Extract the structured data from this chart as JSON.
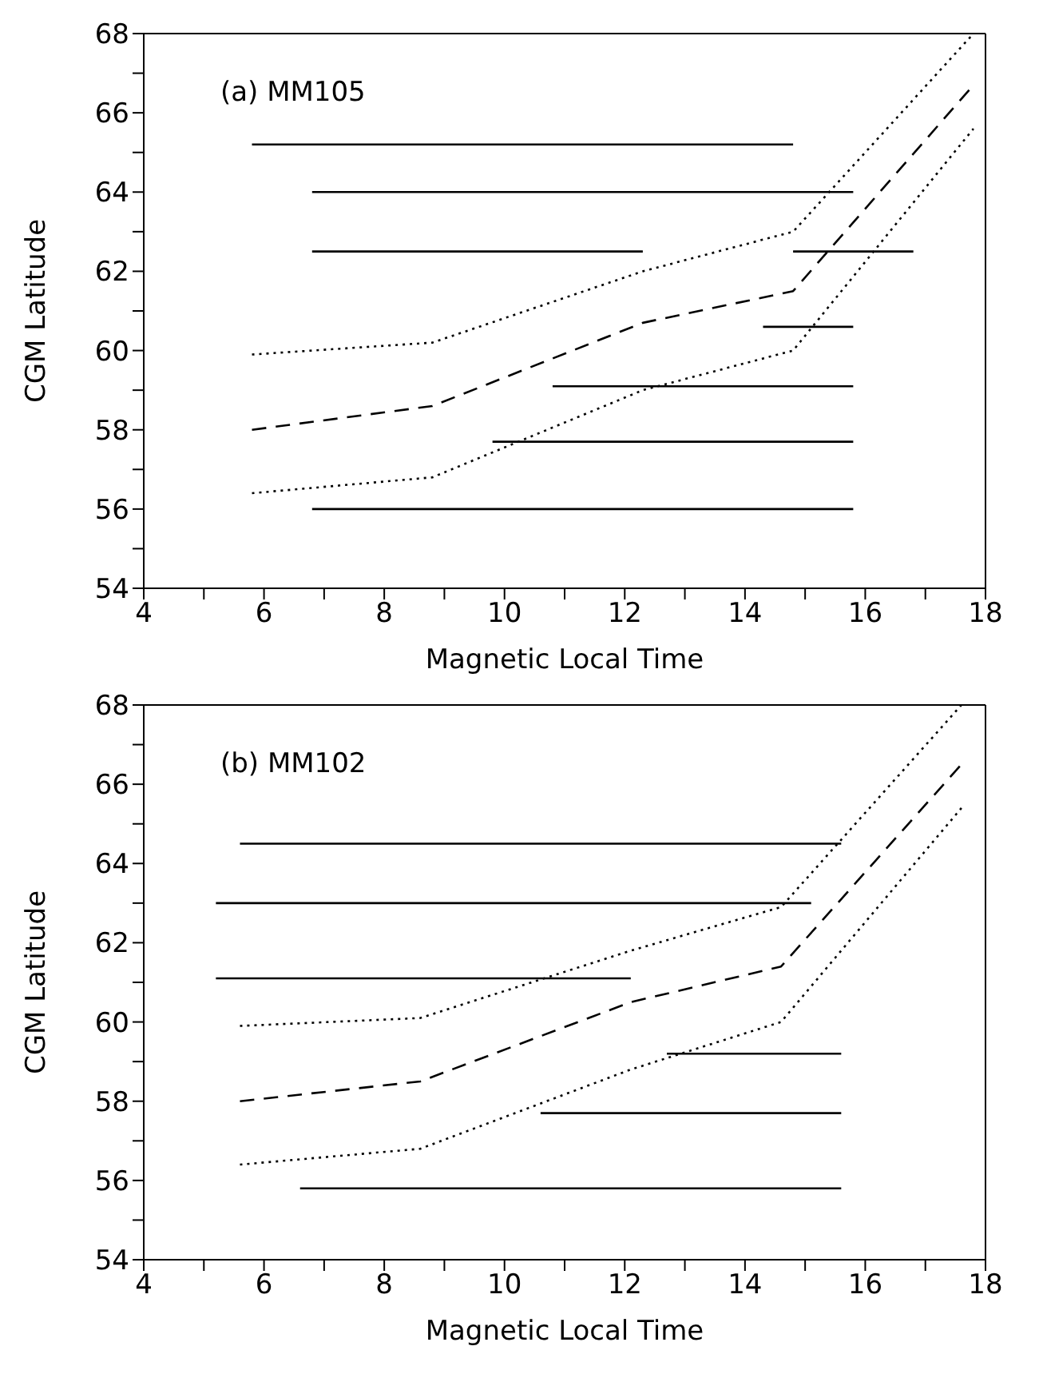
{
  "chart_data": [
    {
      "type": "line",
      "annotations": [
        "(a) MM105"
      ],
      "xlabel": "Magnetic Local Time",
      "ylabel": "CGM Latitude",
      "xlim": [
        4,
        18
      ],
      "ylim": [
        54,
        68
      ],
      "xticks": [
        4,
        {
          "value": 5,
          "label": null
        },
        6,
        {
          "value": 7,
          "label": null
        },
        8,
        {
          "value": 9,
          "label": null
        },
        10,
        {
          "value": 11,
          "label": null
        },
        12,
        {
          "value": 13,
          "label": null
        },
        14,
        {
          "value": 15,
          "label": null
        },
        16,
        {
          "value": 17,
          "label": null
        },
        18
      ],
      "yticks": [
        54,
        {
          "value": 55,
          "label": null
        },
        56,
        {
          "value": 57,
          "label": null
        },
        58,
        {
          "value": 59,
          "label": null
        },
        60,
        {
          "value": 61,
          "label": null
        },
        62,
        {
          "value": 63,
          "label": null
        },
        64,
        {
          "value": 65,
          "label": null
        },
        66,
        {
          "value": 67,
          "label": null
        },
        68
      ],
      "marker": "none",
      "series": [
        {
          "color": "#000000",
          "line_style": "solid",
          "x": [
            5.8,
            14.8
          ],
          "values": [
            65.2,
            65.2
          ]
        },
        {
          "color": "#000000",
          "line_style": "solid",
          "x": [
            6.8,
            15.8
          ],
          "values": [
            64.0,
            64.0
          ]
        },
        {
          "color": "#000000",
          "line_style": "solid",
          "x": [
            6.8,
            12.3
          ],
          "values": [
            62.5,
            62.5
          ]
        },
        {
          "color": "#000000",
          "line_style": "solid",
          "x": [
            14.8,
            16.8
          ],
          "values": [
            62.5,
            62.5
          ]
        },
        {
          "color": "#000000",
          "line_style": "solid",
          "x": [
            14.3,
            15.8
          ],
          "values": [
            60.6,
            60.6
          ]
        },
        {
          "color": "#000000",
          "line_style": "solid",
          "x": [
            10.8,
            15.8
          ],
          "values": [
            59.1,
            59.1
          ]
        },
        {
          "color": "#000000",
          "line_style": "solid",
          "x": [
            9.8,
            15.8
          ],
          "values": [
            57.7,
            57.7
          ]
        },
        {
          "color": "#000000",
          "line_style": "solid",
          "x": [
            6.8,
            15.8
          ],
          "values": [
            56.0,
            56.0
          ]
        },
        {
          "color": "#000000",
          "line_style": "dashed",
          "x": [
            5.8,
            8.8,
            12.3,
            14.8,
            17.8
          ],
          "values": [
            58.0,
            58.6,
            60.7,
            61.5,
            66.7
          ]
        },
        {
          "color": "#000000",
          "line_style": "dotted",
          "x": [
            5.8,
            8.8,
            12.3,
            14.8,
            17.8
          ],
          "values": [
            59.9,
            60.2,
            62.0,
            63.0,
            68.0
          ]
        },
        {
          "color": "#000000",
          "line_style": "dotted",
          "x": [
            5.8,
            8.8,
            12.3,
            14.8,
            17.8
          ],
          "values": [
            56.4,
            56.8,
            59.0,
            60.0,
            65.6
          ]
        }
      ]
    },
    {
      "type": "line",
      "annotations": [
        "(b) MM102"
      ],
      "xlabel": "Magnetic Local Time",
      "ylabel": "CGM Latitude",
      "xlim": [
        4,
        18
      ],
      "ylim": [
        54,
        68
      ],
      "xticks": [
        4,
        {
          "value": 5,
          "label": null
        },
        6,
        {
          "value": 7,
          "label": null
        },
        8,
        {
          "value": 9,
          "label": null
        },
        10,
        {
          "value": 11,
          "label": null
        },
        12,
        {
          "value": 13,
          "label": null
        },
        14,
        {
          "value": 15,
          "label": null
        },
        16,
        {
          "value": 17,
          "label": null
        },
        18
      ],
      "yticks": [
        54,
        {
          "value": 55,
          "label": null
        },
        56,
        {
          "value": 57,
          "label": null
        },
        58,
        {
          "value": 59,
          "label": null
        },
        60,
        {
          "value": 61,
          "label": null
        },
        62,
        {
          "value": 63,
          "label": null
        },
        64,
        {
          "value": 65,
          "label": null
        },
        66,
        {
          "value": 67,
          "label": null
        },
        68
      ],
      "marker": "none",
      "series": [
        {
          "color": "#000000",
          "line_style": "solid",
          "x": [
            5.6,
            15.6
          ],
          "values": [
            64.5,
            64.5
          ]
        },
        {
          "color": "#000000",
          "line_style": "solid",
          "x": [
            5.2,
            15.1
          ],
          "values": [
            63.0,
            63.0
          ]
        },
        {
          "color": "#000000",
          "line_style": "solid",
          "x": [
            5.2,
            12.1
          ],
          "values": [
            61.1,
            61.1
          ]
        },
        {
          "color": "#000000",
          "line_style": "solid",
          "x": [
            12.7,
            15.6
          ],
          "values": [
            59.2,
            59.2
          ]
        },
        {
          "color": "#000000",
          "line_style": "solid",
          "x": [
            10.6,
            15.6
          ],
          "values": [
            57.7,
            57.7
          ]
        },
        {
          "color": "#000000",
          "line_style": "solid",
          "x": [
            6.6,
            15.6
          ],
          "values": [
            55.8,
            55.8
          ]
        },
        {
          "color": "#000000",
          "line_style": "dashed",
          "x": [
            5.6,
            8.6,
            12.1,
            14.6,
            17.6
          ],
          "values": [
            58.0,
            58.5,
            60.5,
            61.4,
            66.5
          ]
        },
        {
          "color": "#000000",
          "line_style": "dotted",
          "x": [
            5.6,
            8.6,
            12.1,
            14.6,
            17.6
          ],
          "values": [
            59.9,
            60.1,
            61.8,
            62.9,
            68.0
          ]
        },
        {
          "color": "#000000",
          "line_style": "dotted",
          "x": [
            5.6,
            8.6,
            12.1,
            14.6,
            17.6
          ],
          "values": [
            56.4,
            56.8,
            58.8,
            60.0,
            65.4
          ]
        }
      ]
    }
  ]
}
